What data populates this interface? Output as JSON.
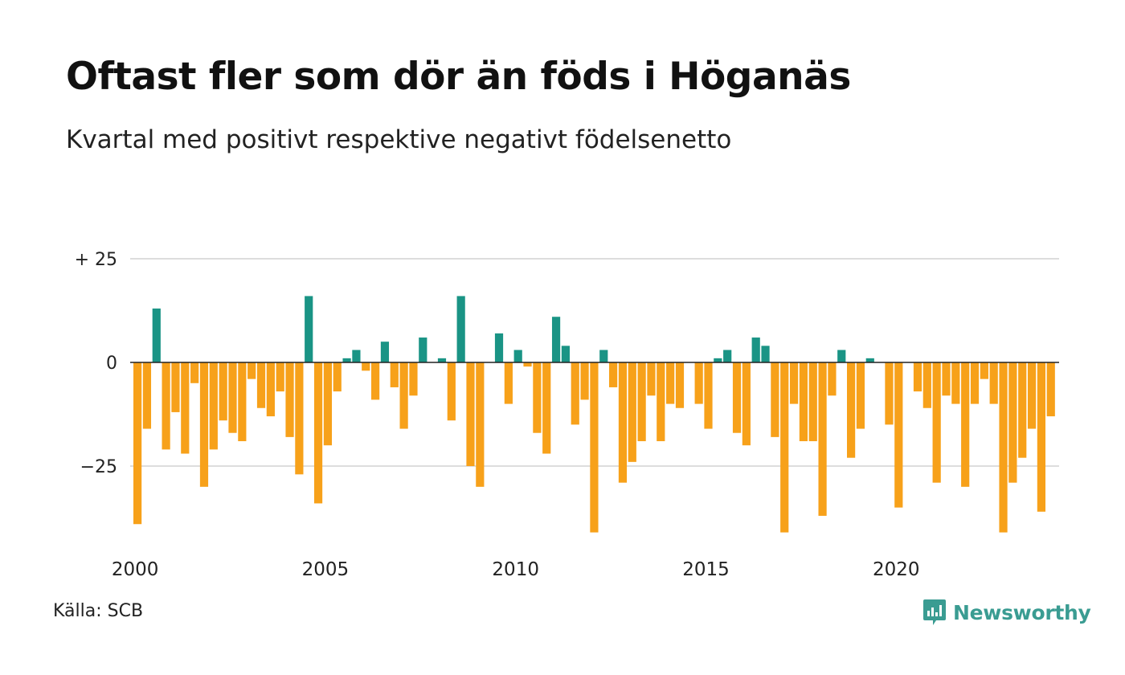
{
  "title": "Oftast fler som dör än föds i Höganäs",
  "subtitle": "Kvartal med positivt respektive negativt födelsenetto",
  "source": "Källa: SCB",
  "brand": "Newsworthy",
  "colors": {
    "positive": "#1a9485",
    "negative": "#f7a11a",
    "gridline": "#dddddd",
    "zeroline": "#222222",
    "brand": "#3a9c92"
  },
  "chart_data": {
    "type": "bar",
    "ylim": [
      -42,
      27
    ],
    "yticks": [
      25,
      0,
      -25
    ],
    "ytick_labels": [
      "+ 25",
      "0",
      "−25"
    ],
    "xticks": [
      2000,
      2005,
      2010,
      2015,
      2020
    ],
    "start_year": 2000,
    "start_quarter": 1,
    "values": [
      -39,
      -16,
      13,
      -21,
      -12,
      -22,
      -5,
      -30,
      -21,
      -14,
      -17,
      -19,
      -4,
      -11,
      -13,
      -7,
      -18,
      -27,
      16,
      -34,
      -20,
      -7,
      1,
      3,
      -2,
      -9,
      5,
      -6,
      -16,
      -8,
      6,
      0,
      1,
      -14,
      16,
      -25,
      -30,
      0,
      7,
      -10,
      3,
      -1,
      -17,
      -22,
      11,
      4,
      -15,
      -9,
      -41,
      3,
      -6,
      -29,
      -24,
      -19,
      -8,
      -19,
      -10,
      -11,
      0,
      -10,
      -16,
      1,
      3,
      -17,
      -20,
      6,
      4,
      -18,
      -41,
      -10,
      -19,
      -19,
      -37,
      -8,
      3,
      -23,
      -16,
      1,
      0,
      -15,
      -35,
      0,
      -7,
      -11,
      -29,
      -8,
      -10,
      -30,
      -10,
      -4,
      -10,
      -41,
      -29,
      -23,
      -16,
      -36,
      -13
    ]
  }
}
